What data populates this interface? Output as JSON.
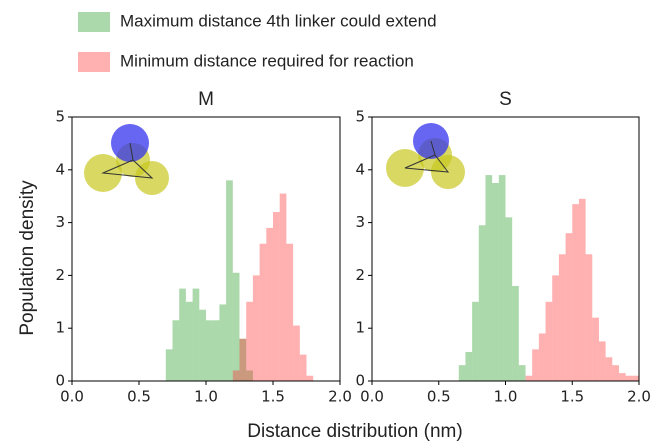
{
  "chart_data": [
    {
      "type": "histogram",
      "title": "M",
      "y_label": "Population density",
      "x_label": "Distance distribution (nm)",
      "series": [
        {
          "name": "Maximum distance 4th linker could extend",
          "color": "#2ca02c",
          "alpha": 0.4,
          "bins": [
            0.7,
            0.75,
            0.8,
            0.85,
            0.9,
            0.95,
            1.0,
            1.05,
            1.1,
            1.15,
            1.2,
            1.25,
            1.3,
            1.35
          ],
          "values": [
            0.6,
            1.15,
            1.75,
            1.5,
            1.75,
            1.35,
            1.15,
            1.15,
            1.45,
            3.8,
            2.05,
            0.8,
            0.2
          ]
        },
        {
          "name": "Minimum distance required for reaction",
          "color": "#ff3333",
          "alpha": 0.38,
          "bins": [
            1.2,
            1.25,
            1.3,
            1.35,
            1.4,
            1.45,
            1.5,
            1.55,
            1.6,
            1.65,
            1.7,
            1.75,
            1.8
          ],
          "values": [
            0.2,
            0.8,
            1.5,
            2.0,
            2.6,
            2.9,
            3.2,
            3.55,
            2.6,
            1.05,
            0.5,
            0.1
          ]
        }
      ],
      "xlim": [
        0,
        2
      ],
      "xticks": [
        {
          "value": 0,
          "label": "0.0"
        },
        {
          "value": 0.5,
          "label": "0.5"
        },
        {
          "value": 1,
          "label": "1.0"
        },
        {
          "value": 1.5,
          "label": "1.5"
        },
        {
          "value": 2,
          "label": "2.0"
        }
      ],
      "ylim": [
        0,
        5
      ],
      "yticks": [
        0,
        1,
        2,
        3,
        4,
        5
      ]
    },
    {
      "type": "histogram",
      "title": "S",
      "series": [
        {
          "color": "#2ca02c",
          "alpha": 0.4,
          "bins": [
            0.65,
            0.7,
            0.75,
            0.8,
            0.85,
            0.9,
            0.95,
            1.0,
            1.05,
            1.1,
            1.15
          ],
          "values": [
            0.3,
            0.55,
            1.5,
            2.95,
            3.9,
            3.75,
            3.9,
            3.1,
            1.8,
            0.3
          ]
        },
        {
          "color": "#ff3333",
          "alpha": 0.38,
          "bins": [
            1.15,
            1.2,
            1.25,
            1.3,
            1.35,
            1.4,
            1.45,
            1.5,
            1.55,
            1.6,
            1.65,
            1.7,
            1.75,
            1.8,
            1.85,
            1.9,
            1.95,
            2.0
          ],
          "values": [
            0.1,
            0.6,
            0.9,
            1.5,
            2.0,
            2.4,
            2.8,
            3.35,
            3.45,
            2.4,
            1.2,
            0.75,
            0.45,
            0.3,
            0.15,
            0.1,
            0.1
          ]
        }
      ],
      "xlim": [
        0,
        2
      ],
      "xticks": [
        {
          "value": 0,
          "label": "0.0"
        },
        {
          "value": 0.5,
          "label": "0.5"
        },
        {
          "value": 1,
          "label": "1.0"
        },
        {
          "value": 1.5,
          "label": "1.5"
        },
        {
          "value": 2,
          "label": "2.0"
        }
      ],
      "ylim": [
        0,
        5
      ],
      "yticks": [
        0,
        1,
        2,
        3,
        4,
        5
      ]
    }
  ]
}
